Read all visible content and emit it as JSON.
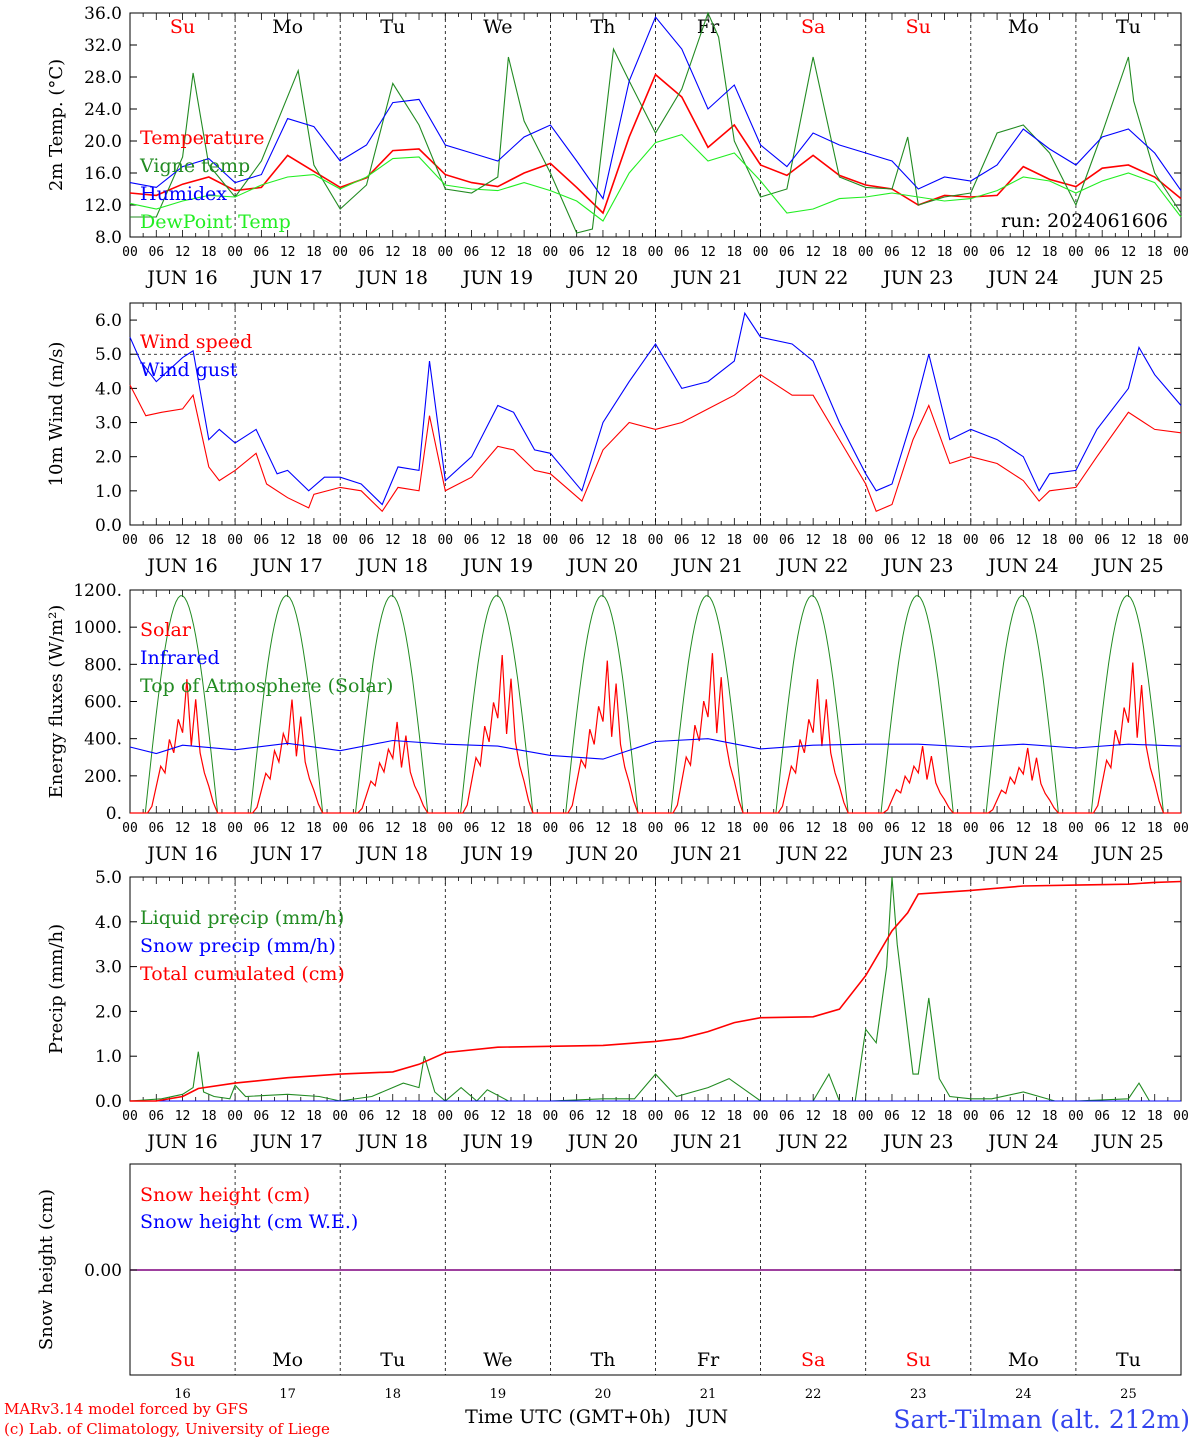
{
  "day_labels": [
    "Su",
    "Mo",
    "Tu",
    "We",
    "Th",
    "Fr",
    "Sa",
    "Su",
    "Mo",
    "Tu"
  ],
  "weekend_flags": [
    true,
    false,
    false,
    false,
    false,
    false,
    true,
    true,
    false,
    false
  ],
  "date_labels": [
    "JUN 16",
    "JUN 17",
    "JUN 18",
    "JUN 19",
    "JUN 20",
    "JUN 21",
    "JUN 22",
    "JUN 23",
    "JUN 24",
    "JUN 25"
  ],
  "hour_labels": [
    "00",
    "06",
    "12",
    "18"
  ],
  "day_numbers": [
    "16",
    "17",
    "18",
    "19",
    "20",
    "21",
    "22",
    "23",
    "24",
    "25"
  ],
  "x_axis_title": "Time UTC (GMT+0h)",
  "x_axis_month": "JUN",
  "credits": {
    "line1": "MARv3.14 model forced by GFS",
    "line2": "(c) Lab. of Climatology, University of Liege"
  },
  "station": "Sart-Tilman (alt. 212m)",
  "run_label": "run: 2024061606",
  "colors": {
    "red": "#ff0000",
    "green": "#228b22",
    "blue": "#0000ff",
    "lightgreen": "#22ee22",
    "purple": "#7f007f",
    "weekend": "#ff0000",
    "weekday": "#000000"
  },
  "chart_data": [
    {
      "type": "line",
      "panel": "temperature",
      "ylabel": "2m Temp. (°C)",
      "ylim": [
        8,
        36
      ],
      "yticks": [
        "8.0",
        "12.0",
        "16.0",
        "20.0",
        "24.0",
        "28.0",
        "32.0",
        "36.0"
      ],
      "ytick_values": [
        8,
        12,
        16,
        20,
        24,
        28,
        32,
        36
      ],
      "x_days": [
        0,
        10
      ],
      "series": [
        {
          "name": "Temperature",
          "color": "#ff0000",
          "x": [
            0,
            0.25,
            0.5,
            0.75,
            1,
            1.25,
            1.5,
            1.75,
            2,
            2.25,
            2.5,
            2.75,
            3,
            3.25,
            3.5,
            3.75,
            4,
            4.25,
            4.5,
            4.75,
            5,
            5.25,
            5.5,
            5.75,
            6,
            6.25,
            6.5,
            6.75,
            7,
            7.25,
            7.5,
            7.75,
            8,
            8.25,
            8.5,
            8.75,
            9,
            9.25,
            9.5,
            9.75,
            10
          ],
          "y": [
            13.5,
            13.2,
            14.6,
            15.5,
            13.8,
            14.2,
            18.2,
            16.2,
            14.2,
            15.4,
            18.8,
            19.0,
            15.8,
            14.8,
            14.3,
            16.0,
            17.2,
            14.2,
            11.0,
            20.5,
            28.3,
            25.5,
            19.2,
            22.0,
            17.0,
            15.7,
            18.2,
            15.7,
            14.5,
            14.0,
            12.0,
            13.2,
            13.0,
            13.2,
            16.8,
            15.2,
            14.3,
            16.6,
            17.0,
            15.5,
            12.8
          ]
        },
        {
          "name": "Vigne temp",
          "color": "#228b22",
          "x": [
            0,
            0.25,
            0.5,
            0.6,
            0.75,
            1,
            1.25,
            1.6,
            1.75,
            2,
            2.25,
            2.5,
            2.75,
            3,
            3.25,
            3.5,
            3.6,
            3.75,
            4,
            4.25,
            4.4,
            4.6,
            4.75,
            5,
            5.25,
            5.5,
            5.6,
            5.75,
            6,
            6.25,
            6.5,
            6.75,
            7,
            7.25,
            7.4,
            7.5,
            7.75,
            8,
            8.25,
            8.5,
            8.75,
            9,
            9.25,
            9.5,
            9.55,
            9.75,
            10
          ],
          "y": [
            10.5,
            10.5,
            18.0,
            28.5,
            17.0,
            13.0,
            17.5,
            28.8,
            17.0,
            11.5,
            14.5,
            27.2,
            22.0,
            14.0,
            13.5,
            15.5,
            30.5,
            22.5,
            16.0,
            8.5,
            9.0,
            31.5,
            27.5,
            21.0,
            26.5,
            40.0,
            33.0,
            20.0,
            13.0,
            14.0,
            30.5,
            15.5,
            14.2,
            14.0,
            20.5,
            12.0,
            13.0,
            13.5,
            21.0,
            22.0,
            18.5,
            12.0,
            21.0,
            30.5,
            25.0,
            16.0,
            11.0
          ]
        },
        {
          "name": "Humidex",
          "color": "#0000ff",
          "x": [
            0,
            0.25,
            0.5,
            0.75,
            1,
            1.25,
            1.5,
            1.75,
            2,
            2.25,
            2.5,
            2.75,
            3,
            3.25,
            3.5,
            3.75,
            4,
            4.25,
            4.5,
            4.75,
            5,
            5.25,
            5.5,
            5.75,
            6,
            6.25,
            6.5,
            6.75,
            7,
            7.25,
            7.5,
            7.75,
            8,
            8.25,
            8.5,
            8.75,
            9,
            9.25,
            9.5,
            9.75,
            10
          ],
          "y": [
            14.8,
            14.2,
            16.8,
            17.8,
            14.8,
            15.8,
            22.8,
            21.8,
            17.5,
            19.5,
            24.8,
            25.2,
            19.5,
            18.5,
            17.5,
            20.5,
            22.0,
            17.5,
            12.8,
            27.5,
            35.5,
            31.5,
            24.0,
            27.0,
            19.5,
            16.8,
            21.0,
            19.5,
            18.5,
            17.5,
            14.0,
            15.5,
            15.0,
            17.0,
            21.5,
            19.0,
            17.0,
            20.5,
            21.5,
            18.5,
            13.8
          ]
        },
        {
          "name": "DewPoint Temp",
          "color": "#22ee22",
          "x": [
            0,
            0.25,
            0.5,
            0.75,
            1,
            1.25,
            1.5,
            1.75,
            2,
            2.25,
            2.5,
            2.75,
            3,
            3.25,
            3.5,
            3.75,
            4,
            4.25,
            4.5,
            4.75,
            5,
            5.25,
            5.5,
            5.75,
            6,
            6.25,
            6.5,
            6.75,
            7,
            7.25,
            7.5,
            7.75,
            8,
            8.25,
            8.5,
            8.75,
            9,
            9.25,
            9.5,
            9.75,
            10
          ],
          "y": [
            12.2,
            11.5,
            12.5,
            13.2,
            13.0,
            14.5,
            15.5,
            15.8,
            14.0,
            15.5,
            17.8,
            18.0,
            14.5,
            14.0,
            13.8,
            14.8,
            13.8,
            12.5,
            10.0,
            16.0,
            19.8,
            20.8,
            17.5,
            18.5,
            15.0,
            11.0,
            11.5,
            12.8,
            13.0,
            13.5,
            13.0,
            12.5,
            12.8,
            13.8,
            15.5,
            15.0,
            13.5,
            15.0,
            16.0,
            14.8,
            10.5
          ]
        }
      ]
    },
    {
      "type": "line",
      "panel": "wind",
      "ylabel": "10m Wind (m/s)",
      "ylim": [
        0,
        6.5
      ],
      "yticks": [
        "0.0",
        "1.0",
        "2.0",
        "3.0",
        "4.0",
        "5.0",
        "6.0"
      ],
      "ytick_values": [
        0,
        1,
        2,
        3,
        4,
        5,
        6
      ],
      "reference_line": 5.0,
      "series": [
        {
          "name": "Wind speed",
          "color": "#ff0000",
          "x": [
            0,
            0.15,
            0.3,
            0.5,
            0.6,
            0.75,
            0.85,
            1,
            1.2,
            1.3,
            1.5,
            1.7,
            1.75,
            2,
            2.2,
            2.4,
            2.55,
            2.75,
            2.85,
            3,
            3.25,
            3.5,
            3.65,
            3.85,
            4,
            4.3,
            4.5,
            4.75,
            5,
            5.25,
            5.5,
            5.75,
            6,
            6.3,
            6.5,
            6.75,
            7,
            7.1,
            7.25,
            7.45,
            7.6,
            7.8,
            8,
            8.25,
            8.5,
            8.65,
            8.75,
            9,
            9.2,
            9.5,
            9.75,
            10
          ],
          "y": [
            4.1,
            3.2,
            3.3,
            3.4,
            3.8,
            1.7,
            1.3,
            1.6,
            2.1,
            1.2,
            0.8,
            0.5,
            0.9,
            1.1,
            1.0,
            0.4,
            1.1,
            1.0,
            3.2,
            1.0,
            1.4,
            2.3,
            2.2,
            1.6,
            1.5,
            0.7,
            2.2,
            3.0,
            2.8,
            3.0,
            3.4,
            3.8,
            4.4,
            3.8,
            3.8,
            2.5,
            1.2,
            0.4,
            0.6,
            2.5,
            3.5,
            1.8,
            2.0,
            1.8,
            1.3,
            0.7,
            1.0,
            1.1,
            2.0,
            3.3,
            2.8,
            2.7
          ]
        },
        {
          "name": "Wind gust",
          "color": "#0000ff",
          "x": [
            0,
            0.1,
            0.25,
            0.5,
            0.6,
            0.75,
            0.85,
            1,
            1.2,
            1.4,
            1.5,
            1.7,
            1.85,
            2,
            2.2,
            2.4,
            2.55,
            2.75,
            2.85,
            3,
            3.25,
            3.5,
            3.65,
            3.85,
            4,
            4.3,
            4.5,
            4.75,
            5,
            5.25,
            5.5,
            5.75,
            5.85,
            6,
            6.3,
            6.5,
            6.75,
            7,
            7.1,
            7.25,
            7.45,
            7.6,
            7.8,
            8,
            8.25,
            8.5,
            8.65,
            8.75,
            9,
            9.2,
            9.5,
            9.6,
            9.75,
            10
          ],
          "y": [
            5.5,
            4.8,
            4.2,
            4.9,
            5.1,
            2.5,
            2.8,
            2.4,
            2.8,
            1.5,
            1.6,
            1.0,
            1.4,
            1.4,
            1.2,
            0.6,
            1.7,
            1.6,
            4.8,
            1.3,
            2.0,
            3.5,
            3.3,
            2.2,
            2.1,
            1.0,
            3.0,
            4.2,
            5.3,
            4.0,
            4.2,
            4.8,
            6.2,
            5.5,
            5.3,
            4.8,
            3.0,
            1.5,
            1.0,
            1.2,
            3.2,
            5.0,
            2.5,
            2.8,
            2.5,
            2.0,
            1.0,
            1.5,
            1.6,
            2.8,
            4.0,
            5.2,
            4.4,
            3.5
          ]
        }
      ]
    },
    {
      "type": "line",
      "panel": "energy",
      "ylabel": "Energy fluxes (W/m²)",
      "ylim": [
        0,
        1200
      ],
      "yticks": [
        "0.",
        "200.",
        "400.",
        "600.",
        "800.",
        "1000.",
        "1200."
      ],
      "ytick_values": [
        0,
        200,
        400,
        600,
        800,
        1000,
        1200
      ],
      "toa_peak": 1170,
      "toa_window_hours": [
        3.5,
        20.0
      ],
      "series": [
        {
          "name": "Solar",
          "color": "#ff0000",
          "day_peaks": [
            720,
            610,
            490,
            850,
            820,
            860,
            720,
            360,
            350,
            810
          ]
        },
        {
          "name": "Infrared",
          "color": "#0000ff",
          "x": [
            0,
            0.25,
            0.5,
            1,
            1.5,
            2,
            2.5,
            3,
            3.5,
            4,
            4.5,
            5,
            5.5,
            6,
            6.5,
            7,
            7.5,
            8,
            8.5,
            9,
            9.5,
            10
          ],
          "y": [
            355,
            320,
            365,
            340,
            375,
            335,
            390,
            370,
            360,
            310,
            290,
            385,
            400,
            345,
            365,
            370,
            370,
            355,
            370,
            350,
            370,
            360
          ]
        },
        {
          "name": "Top of Atmosphere (Solar)",
          "color": "#228b22"
        }
      ]
    },
    {
      "type": "line",
      "panel": "precip",
      "ylabel": "Precip (mm/h)",
      "ylim": [
        0,
        5
      ],
      "yticks": [
        "0.0",
        "1.0",
        "2.0",
        "3.0",
        "4.0",
        "5.0"
      ],
      "ytick_values": [
        0,
        1,
        2,
        3,
        4,
        5
      ],
      "series": [
        {
          "name": "Liquid precip (mm/h)",
          "color": "#228b22",
          "x": [
            0,
            0.3,
            0.5,
            0.6,
            0.65,
            0.7,
            0.8,
            0.95,
            1,
            1.1,
            1.5,
            1.8,
            2,
            2.3,
            2.6,
            2.75,
            2.8,
            2.9,
            3,
            3.15,
            3.3,
            3.4,
            3.6,
            4,
            4.5,
            4.8,
            5,
            5.2,
            5.5,
            5.7,
            6,
            6.5,
            6.65,
            6.75,
            6.9,
            7,
            7.1,
            7.2,
            7.25,
            7.3,
            7.45,
            7.5,
            7.6,
            7.7,
            7.8,
            8,
            8.2,
            8.5,
            8.8,
            9,
            9.5,
            9.6,
            9.7,
            10
          ],
          "y": [
            0,
            0.05,
            0.15,
            0.3,
            1.1,
            0.2,
            0.1,
            0.05,
            0.35,
            0.1,
            0.15,
            0.1,
            0,
            0.1,
            0.4,
            0.3,
            1.0,
            0.2,
            0,
            0.3,
            0,
            0.25,
            0,
            0,
            0.05,
            0.05,
            0.6,
            0.1,
            0.3,
            0.5,
            0,
            0,
            0.6,
            0,
            0,
            1.6,
            1.3,
            3.0,
            5.0,
            3.5,
            0.6,
            0.6,
            2.3,
            0.5,
            0.1,
            0.05,
            0.05,
            0.2,
            0,
            0,
            0.05,
            0.4,
            0,
            0
          ]
        },
        {
          "name": "Snow precip (mm/h)",
          "color": "#0000ff",
          "x": [
            0,
            10
          ],
          "y": [
            0,
            0
          ]
        },
        {
          "name": "Total cumulated (cm)",
          "color": "#ff0000",
          "x": [
            0,
            0.25,
            0.5,
            0.65,
            1,
            1.5,
            2,
            2.5,
            2.75,
            3,
            3.5,
            4,
            4.5,
            5,
            5.25,
            5.5,
            5.75,
            6,
            6.5,
            6.75,
            7,
            7.25,
            7.4,
            7.5,
            7.75,
            8,
            8.5,
            9,
            9.5,
            9.75,
            10
          ],
          "y": [
            0,
            0,
            0.1,
            0.28,
            0.4,
            0.52,
            0.6,
            0.65,
            0.82,
            1.08,
            1.2,
            1.22,
            1.24,
            1.33,
            1.4,
            1.55,
            1.75,
            1.86,
            1.88,
            2.05,
            2.8,
            3.8,
            4.2,
            4.62,
            4.66,
            4.7,
            4.8,
            4.82,
            4.84,
            4.88,
            4.9
          ]
        }
      ]
    },
    {
      "type": "line",
      "panel": "snow",
      "ylabel": "Snow height (cm)",
      "ytick_label": "0.00",
      "series": [
        {
          "name": "Snow height (cm)",
          "color": "#ff0000",
          "x": [
            0,
            10
          ],
          "y": [
            0,
            0
          ]
        },
        {
          "name": "Snow height (cm W.E.)",
          "color": "#0000ff",
          "x": [
            0,
            10
          ],
          "y": [
            0,
            0
          ]
        }
      ]
    }
  ]
}
